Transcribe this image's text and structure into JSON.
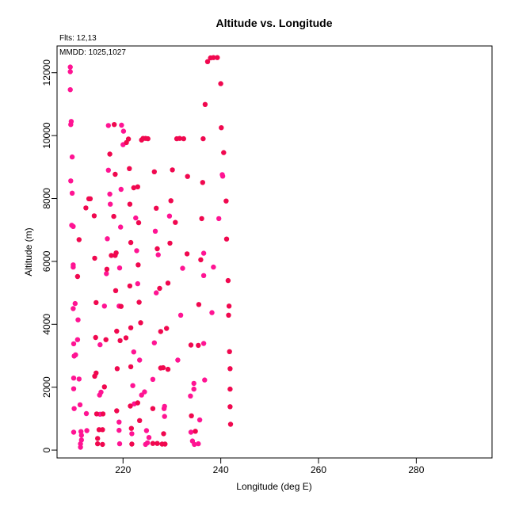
{
  "chart_data": {
    "type": "scatter",
    "title": "Altitude vs. Longitude",
    "annotations": [
      "Flts: 12,13",
      "MMDD: 1025,1027"
    ],
    "xlabel": "Longitude (deg E)",
    "ylabel": "Altitude (m)",
    "xlim": [
      206.5,
      295.5
    ],
    "ylim": [
      -250,
      12850
    ],
    "xticks": [
      220,
      240,
      260,
      280
    ],
    "yticks": [
      0,
      2000,
      4000,
      6000,
      8000,
      10000,
      12000
    ],
    "grid": false,
    "series": [
      {
        "color": "#ff1493",
        "points": [
          [
            209.2,
            12180
          ],
          [
            209.2,
            12030
          ],
          [
            209.2,
            11460
          ],
          [
            209.4,
            10450
          ],
          [
            209.3,
            10350
          ],
          [
            209.6,
            9320
          ],
          [
            209.3,
            8560
          ],
          [
            209.6,
            8170
          ],
          [
            209.5,
            7150
          ],
          [
            209.8,
            7110
          ],
          [
            209.8,
            5890
          ],
          [
            209.8,
            5820
          ],
          [
            210.2,
            4660
          ],
          [
            209.8,
            4500
          ],
          [
            209.9,
            3380
          ],
          [
            210.3,
            3030
          ],
          [
            210.0,
            2990
          ],
          [
            209.9,
            2290
          ],
          [
            209.9,
            1950
          ],
          [
            210.0,
            1320
          ],
          [
            209.9,
            570
          ],
          [
            210.7,
            3510
          ],
          [
            210.8,
            4140
          ],
          [
            211.0,
            2260
          ],
          [
            211.2,
            1440
          ],
          [
            211.4,
            590
          ],
          [
            211.5,
            470
          ],
          [
            211.5,
            320
          ],
          [
            211.3,
            200
          ],
          [
            211.3,
            90
          ],
          [
            212.5,
            1160
          ],
          [
            212.6,
            620
          ],
          [
            215.2,
            1750
          ],
          [
            215.3,
            1140
          ],
          [
            215.5,
            1840
          ],
          [
            215.3,
            3350
          ],
          [
            216.2,
            4580
          ],
          [
            216.6,
            5610
          ],
          [
            216.8,
            6720
          ],
          [
            217.0,
            8900
          ],
          [
            217.3,
            8140
          ],
          [
            217.4,
            7820
          ],
          [
            217.0,
            10320
          ],
          [
            219.2,
            4580
          ],
          [
            219.3,
            5790
          ],
          [
            219.5,
            7090
          ],
          [
            219.6,
            8290
          ],
          [
            219.7,
            10330
          ],
          [
            220.0,
            9710
          ],
          [
            220.1,
            10140
          ],
          [
            219.2,
            630
          ],
          [
            219.2,
            890
          ],
          [
            219.3,
            200
          ],
          [
            221.8,
            520
          ],
          [
            222.0,
            2050
          ],
          [
            222.2,
            3120
          ],
          [
            222.3,
            1470
          ],
          [
            222.6,
            7380
          ],
          [
            222.8,
            6340
          ],
          [
            223.0,
            5290
          ],
          [
            223.4,
            2860
          ],
          [
            223.8,
            1750
          ],
          [
            224.4,
            1850
          ],
          [
            224.8,
            620
          ],
          [
            225.0,
            230
          ],
          [
            224.6,
            180
          ],
          [
            225.3,
            400
          ],
          [
            226.1,
            2250
          ],
          [
            226.4,
            3410
          ],
          [
            226.6,
            6960
          ],
          [
            226.8,
            5000
          ],
          [
            227.2,
            6210
          ],
          [
            228.4,
            1320
          ],
          [
            228.5,
            1390
          ],
          [
            228.5,
            1070
          ],
          [
            229.5,
            7440
          ],
          [
            231.2,
            2860
          ],
          [
            231.8,
            4290
          ],
          [
            232.2,
            5780
          ],
          [
            233.8,
            1720
          ],
          [
            234.5,
            2120
          ],
          [
            234.5,
            1940
          ],
          [
            233.9,
            570
          ],
          [
            234.2,
            290
          ],
          [
            234.6,
            180
          ],
          [
            235.4,
            200
          ],
          [
            235.7,
            960
          ],
          [
            236.7,
            2230
          ],
          [
            236.5,
            3390
          ],
          [
            236.5,
            5550
          ],
          [
            236.5,
            6260
          ],
          [
            238.2,
            4370
          ],
          [
            238.5,
            5820
          ],
          [
            239.6,
            7360
          ],
          [
            240.4,
            8710
          ],
          [
            240.3,
            8760
          ]
        ]
      },
      {
        "color": "#f0084f",
        "points": [
          [
            211.0,
            6690
          ],
          [
            210.7,
            5520
          ],
          [
            212.4,
            7700
          ],
          [
            213.0,
            7990
          ],
          [
            213.3,
            7990
          ],
          [
            214.1,
            7450
          ],
          [
            214.2,
            6100
          ],
          [
            214.5,
            4690
          ],
          [
            214.4,
            3580
          ],
          [
            214.5,
            2450
          ],
          [
            214.2,
            2350
          ],
          [
            214.6,
            1150
          ],
          [
            214.8,
            370
          ],
          [
            214.8,
            200
          ],
          [
            215.1,
            650
          ],
          [
            215.8,
            180
          ],
          [
            215.8,
            650
          ],
          [
            215.9,
            1150
          ],
          [
            216.2,
            2010
          ],
          [
            216.5,
            3510
          ],
          [
            216.7,
            5750
          ],
          [
            217.6,
            6190
          ],
          [
            218.4,
            6190
          ],
          [
            218.1,
            7430
          ],
          [
            218.4,
            8770
          ],
          [
            217.3,
            9410
          ],
          [
            218.2,
            10350
          ],
          [
            218.6,
            6270
          ],
          [
            218.5,
            5070
          ],
          [
            218.7,
            3780
          ],
          [
            218.8,
            2590
          ],
          [
            218.7,
            1250
          ],
          [
            219.4,
            3480
          ],
          [
            219.6,
            4570
          ],
          [
            220.6,
            3570
          ],
          [
            220.7,
            9780
          ],
          [
            221.1,
            9890
          ],
          [
            221.3,
            8950
          ],
          [
            221.4,
            7820
          ],
          [
            221.6,
            6600
          ],
          [
            221.4,
            5220
          ],
          [
            221.6,
            3890
          ],
          [
            221.6,
            2650
          ],
          [
            221.5,
            1400
          ],
          [
            221.7,
            690
          ],
          [
            221.8,
            190
          ],
          [
            222.2,
            8340
          ],
          [
            223.0,
            8370
          ],
          [
            223.2,
            7230
          ],
          [
            223.1,
            5890
          ],
          [
            223.3,
            4700
          ],
          [
            223.6,
            4050
          ],
          [
            223.0,
            1500
          ],
          [
            223.4,
            940
          ],
          [
            223.8,
            9860
          ],
          [
            224.1,
            9910
          ],
          [
            224.6,
            9910
          ],
          [
            225.1,
            9900
          ],
          [
            226.1,
            1320
          ],
          [
            226.1,
            210
          ],
          [
            227.0,
            210
          ],
          [
            228.0,
            190
          ],
          [
            228.3,
            520
          ],
          [
            228.6,
            190
          ],
          [
            226.4,
            8850
          ],
          [
            226.8,
            7690
          ],
          [
            227.0,
            6400
          ],
          [
            227.5,
            5140
          ],
          [
            227.7,
            3770
          ],
          [
            227.7,
            2610
          ],
          [
            228.2,
            2620
          ],
          [
            228.9,
            3870
          ],
          [
            229.2,
            5310
          ],
          [
            229.6,
            6580
          ],
          [
            229.8,
            7930
          ],
          [
            230.1,
            8910
          ],
          [
            229.2,
            2570
          ],
          [
            230.7,
            7240
          ],
          [
            231.0,
            9900
          ],
          [
            231.6,
            9910
          ],
          [
            232.4,
            9900
          ],
          [
            233.2,
            8700
          ],
          [
            233.1,
            6240
          ],
          [
            233.9,
            3340
          ],
          [
            234.0,
            1090
          ],
          [
            234.8,
            600
          ],
          [
            235.4,
            3330
          ],
          [
            235.5,
            4630
          ],
          [
            235.9,
            6050
          ],
          [
            236.1,
            7360
          ],
          [
            236.3,
            8510
          ],
          [
            236.4,
            9900
          ],
          [
            236.8,
            10990
          ],
          [
            237.3,
            12350
          ],
          [
            237.9,
            12470
          ],
          [
            238.5,
            12480
          ],
          [
            239.3,
            12480
          ],
          [
            240.0,
            11650
          ],
          [
            240.1,
            10250
          ],
          [
            240.6,
            9460
          ],
          [
            241.1,
            7920
          ],
          [
            241.2,
            6710
          ],
          [
            241.5,
            5390
          ],
          [
            241.7,
            4580
          ],
          [
            241.6,
            4290
          ],
          [
            241.8,
            3130
          ],
          [
            241.9,
            2590
          ],
          [
            241.9,
            1940
          ],
          [
            241.9,
            1380
          ],
          [
            242.0,
            820
          ]
        ]
      }
    ]
  }
}
